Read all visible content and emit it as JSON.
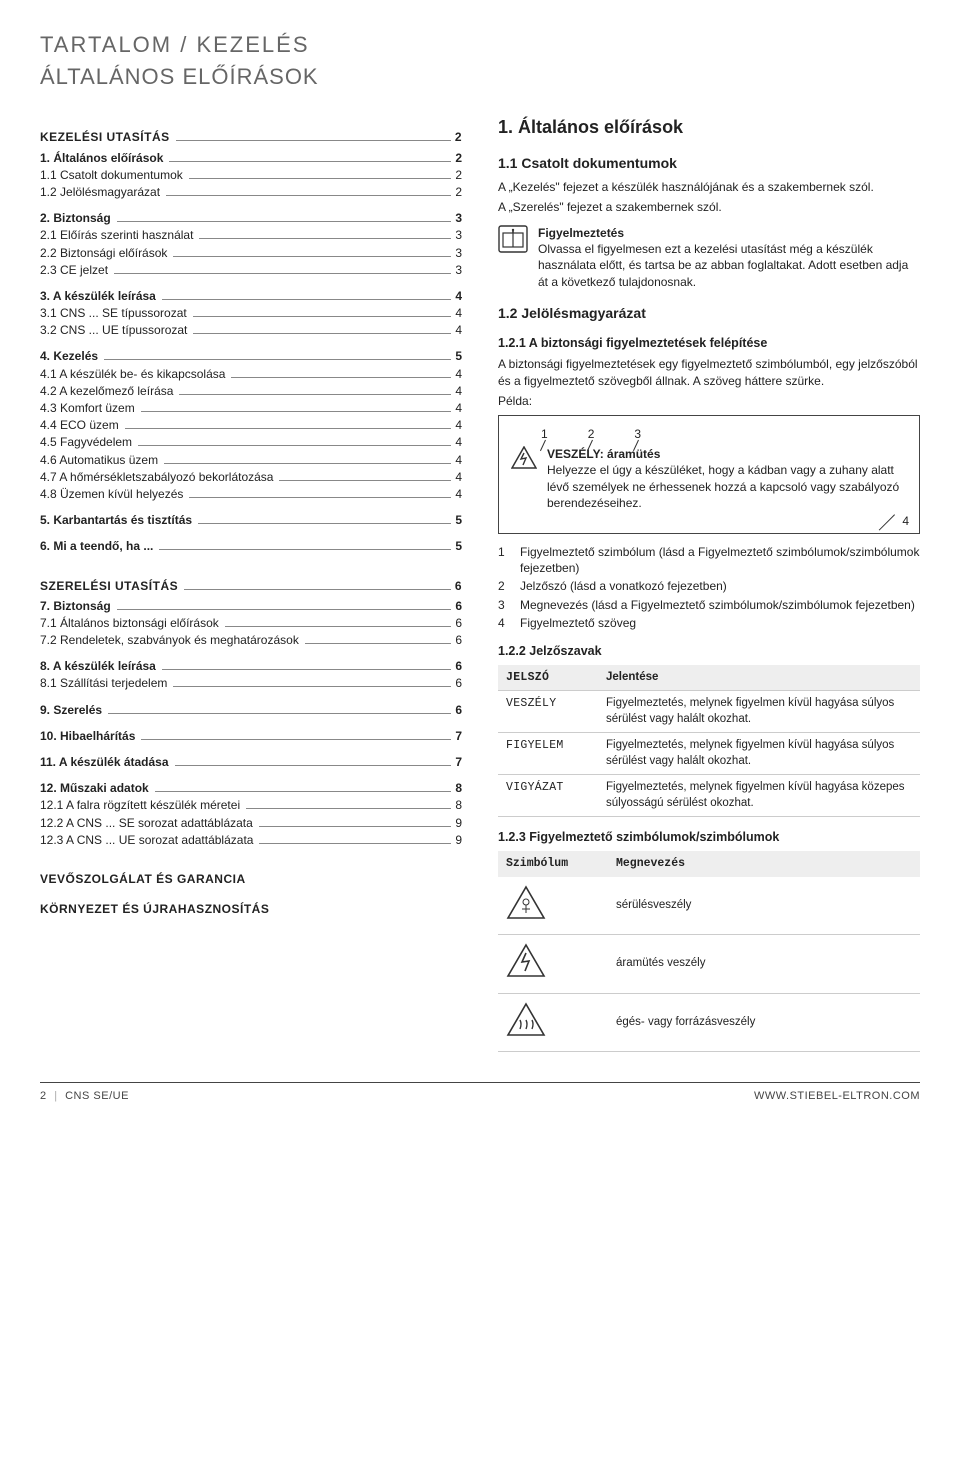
{
  "header": {
    "line1": "TARTALOM / KEZELÉS",
    "line2": "ÁLTALÁNOS ELŐÍRÁSOK"
  },
  "toc": {
    "groups": [
      {
        "title": "KEZELÉSI UTASÍTÁS",
        "title_page": "2",
        "items": []
      },
      {
        "title": "",
        "items": [
          {
            "label": "1.   Általános előírások",
            "page": "2",
            "bold": true
          },
          {
            "label": "1.1  Csatolt dokumentumok",
            "page": "2"
          },
          {
            "label": "1.2  Jelölésmagyarázat",
            "page": "2"
          }
        ]
      },
      {
        "title": "",
        "items": [
          {
            "label": "2.   Biztonság",
            "page": "3",
            "bold": true
          },
          {
            "label": "2.1  Előírás szerinti használat",
            "page": "3"
          },
          {
            "label": "2.2  Biztonsági előírások",
            "page": "3"
          },
          {
            "label": "2.3  CE jelzet",
            "page": "3"
          }
        ]
      },
      {
        "title": "",
        "items": [
          {
            "label": "3.   A készülék leírása",
            "page": "4",
            "bold": true
          },
          {
            "label": "3.1  CNS ... SE típussorozat",
            "page": "4"
          },
          {
            "label": "3.2  CNS ... UE típussorozat",
            "page": "4"
          }
        ]
      },
      {
        "title": "",
        "items": [
          {
            "label": "4.   Kezelés",
            "page": "5",
            "bold": true
          },
          {
            "label": "4.1  A készülék be- és kikapcsolása",
            "page": "4"
          },
          {
            "label": "4.2  A kezelőmező leírása",
            "page": "4"
          },
          {
            "label": "4.3  Komfort üzem",
            "page": "4"
          },
          {
            "label": "4.4  ECO üzem",
            "page": "4"
          },
          {
            "label": "4.5  Fagyvédelem",
            "page": "4"
          },
          {
            "label": "4.6  Automatikus üzem",
            "page": "4"
          },
          {
            "label": "4.7  A hőmérsékletszabályozó bekorlátozása",
            "page": "4"
          },
          {
            "label": "4.8  Üzemen kívül helyezés",
            "page": "4"
          }
        ]
      },
      {
        "title": "",
        "items": [
          {
            "label": "5.   Karbantartás és tisztítás",
            "page": "5",
            "bold": true
          }
        ]
      },
      {
        "title": "",
        "items": [
          {
            "label": "6.   Mi a teendő, ha ...",
            "page": "5",
            "bold": true
          }
        ]
      },
      {
        "title": "SZERELÉSI UTASÍTÁS",
        "title_page": "6",
        "items": []
      },
      {
        "title": "",
        "items": [
          {
            "label": "7.   Biztonság",
            "page": "6",
            "bold": true
          },
          {
            "label": "7.1  Általános biztonsági előírások",
            "page": "6"
          },
          {
            "label": "7.2  Rendeletek, szabványok és meghatározások",
            "page": "6"
          }
        ]
      },
      {
        "title": "",
        "items": [
          {
            "label": "8.   A készülék leírása",
            "page": "6",
            "bold": true
          },
          {
            "label": "8.1  Szállítási terjedelem",
            "page": "6"
          }
        ]
      },
      {
        "title": "",
        "items": [
          {
            "label": "9.   Szerelés",
            "page": "6",
            "bold": true
          }
        ]
      },
      {
        "title": "",
        "items": [
          {
            "label": "10.  Hibaelhárítás",
            "page": "7",
            "bold": true
          }
        ]
      },
      {
        "title": "",
        "items": [
          {
            "label": "11.  A készülék átadása",
            "page": "7",
            "bold": true
          }
        ]
      },
      {
        "title": "",
        "items": [
          {
            "label": "12.  Műszaki adatok",
            "page": "8",
            "bold": true
          },
          {
            "label": "12.1  A falra rögzített készülék  méretei",
            "page": "8"
          },
          {
            "label": "12.2  A CNS ... SE sorozat adattáblázata",
            "page": "9"
          },
          {
            "label": "12.3  A CNS ... UE sorozat adattáblázata",
            "page": "9"
          }
        ]
      },
      {
        "title": "VEVŐSZOLGÁLAT ÉS GARANCIA",
        "items": []
      },
      {
        "title": "KÖRNYEZET ÉS ÚJRAHASZNOSÍTÁS",
        "items": []
      }
    ]
  },
  "right": {
    "h1": "1.   Általános előírások",
    "s11": {
      "title": "1.1  Csatolt dokumentumok",
      "p1": "A „Kezelés\" fejezet a készülék használójának és a szakembernek szól.",
      "p2": "A „Szerelés\" fejezet a szakembernek szól.",
      "notice_title": "Figyelmeztetés",
      "notice_body": "Olvassa el figyelmesen ezt a kezelési utasítást még a készülék használata előtt, és tartsa be az abban foglaltakat. Adott esetben adja át a következő tulajdonosnak."
    },
    "s12": {
      "title": "1.2  Jelölésmagyarázat"
    },
    "s121": {
      "title": "1.2.1 A biztonsági figyelmeztetések felépítése",
      "p1": "A biztonsági figyelmeztetések egy figyelmeztető szimbólumból, egy jelzőszóból és a figyelmeztető szövegből állnak. A szöveg háttere szürke.",
      "p2": "Példa:",
      "ex_nums": [
        "1",
        "2",
        "3"
      ],
      "ex_title": "VESZÉLY: áramütés",
      "ex_body": "Helyezze el úgy a készüléket, hogy a kádban vagy a zuhany alatt lévő személyek ne érhessenek hozzá a kapcsoló vagy szabályozó berendezéseihez.",
      "ex4": "4",
      "list": [
        "Figyelmeztető szimbólum (lásd a Figyelmeztető szimbólumok/szimbólumok fejezetben)",
        "Jelzőszó (lásd a vonatkozó fejezetben)",
        "Megnevezés (lásd a Figyelmeztető szimbólumok/szimbólumok fejezetben)",
        "Figyelmeztető szöveg"
      ]
    },
    "s122": {
      "title": "1.2.2 Jelzőszavak",
      "th1": "JELSZÓ",
      "th2": "Jelentése",
      "rows": [
        {
          "w": "VESZÉLY",
          "d": "Figyelmeztetés, melynek figyelmen kívül hagyása súlyos sérülést vagy halált okozhat."
        },
        {
          "w": "FIGYELEM",
          "d": "Figyelmeztetés, melynek figyelmen kívül hagyása súlyos sérülést vagy halált okozhat."
        },
        {
          "w": "VIGYÁZAT",
          "d": "Figyelmeztetés, melynek figyelmen kívül hagyása közepes súlyosságú sérülést okozhat."
        }
      ]
    },
    "s123": {
      "title": "1.2.3 Figyelmeztető szimbólumok/szimbólumok",
      "th1": "Szimbólum",
      "th2": "Megnevezés",
      "rows": [
        "sérülésveszély",
        "áramütés veszély",
        "égés- vagy forrázásveszély"
      ]
    }
  },
  "footer": {
    "left_page": "2",
    "left_doc": "CNS SE/UE",
    "right": "WWW.STIEBEL-ELTRON.COM"
  }
}
